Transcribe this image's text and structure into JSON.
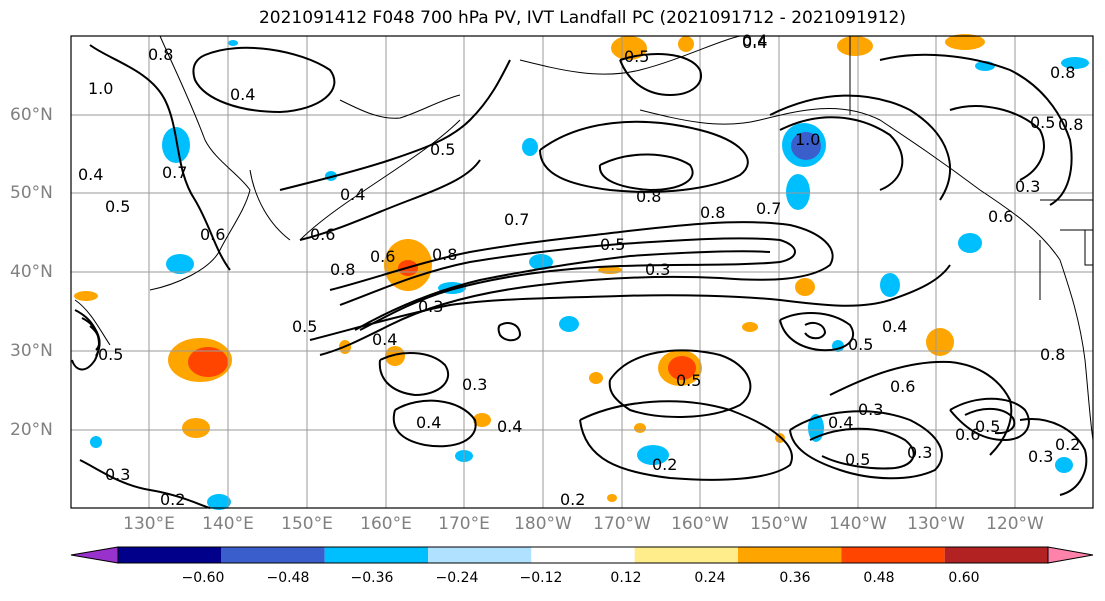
{
  "title": "2021091412 F048 700 hPa PV, IVT Landfall PC (2021091712 - 2021091912)",
  "lat_labels": [
    "60°N",
    "50°N",
    "40°N",
    "30°N",
    "20°N"
  ],
  "lon_labels": [
    "130°E",
    "140°E",
    "150°E",
    "160°E",
    "170°E",
    "180°W",
    "170°W",
    "160°W",
    "150°W",
    "140°W",
    "130°W",
    "120°W"
  ],
  "colorbar": {
    "colors": [
      "#9932cc",
      "#00008b",
      "#3a5fcd",
      "#00bfff",
      "#b0e2ff",
      "#ffffff",
      "#ffec8b",
      "#ffa500",
      "#ff4500",
      "#b22222",
      "#ff82ab"
    ],
    "ticks": [
      "−0.60",
      "−0.48",
      "−0.36",
      "−0.24",
      "−0.12",
      "0.12",
      "0.24",
      "0.36",
      "0.48",
      "0.60"
    ]
  },
  "contour_labels": [
    "0.8",
    "1.0",
    "0.4",
    "0.4",
    "0.7",
    "0.5",
    "0.6",
    "0.5",
    "0.4",
    "0.8",
    "0.6",
    "0.5",
    "0.4",
    "0.6",
    "0.8",
    "0.8",
    "0.7",
    "0.8",
    "0.7",
    "0.5",
    "0.3",
    "0.5",
    "0.4",
    "0.3",
    "0.4",
    "0.4",
    "0.3",
    "0.4",
    "0.5",
    "0.2",
    "0.3",
    "0.2",
    "0.4",
    "0.5",
    "0.3",
    "0.5",
    "0.6",
    "0.3",
    "0.6",
    "0.5",
    "0.8",
    "1.0",
    "0.8",
    "0.3",
    "0.6",
    "0.5",
    "0.4",
    "0.8",
    "0.2",
    "0.3",
    "0.2",
    "0.5"
  ]
}
